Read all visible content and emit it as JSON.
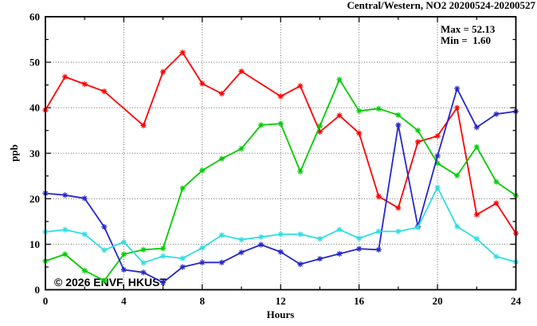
{
  "chart_data": {
    "type": "line",
    "title": "Central/Western, NO2 20200524-20200527",
    "annotations": {
      "max_label": "Max = 52.13",
      "min_label": "Min =  1.60"
    },
    "xlabel": "Hours",
    "ylabel": "ppb",
    "xlim": [
      0,
      24
    ],
    "ylim": [
      0,
      60
    ],
    "x_ticks": [
      0,
      4,
      8,
      12,
      16,
      20,
      24
    ],
    "y_ticks": [
      0,
      10,
      20,
      30,
      40,
      50,
      60
    ],
    "x_minor_step": 2,
    "y_minor_step": 5,
    "grid": true,
    "legend": "none",
    "x": [
      0,
      1,
      2,
      3,
      4,
      5,
      6,
      7,
      8,
      9,
      10,
      11,
      12,
      13,
      14,
      15,
      16,
      17,
      18,
      19,
      20,
      21,
      22,
      23,
      24
    ],
    "series": [
      {
        "name": "series-red",
        "color": "#ff0000",
        "values": [
          39.5,
          46.8,
          45.2,
          43.6,
          null,
          36.1,
          47.9,
          52.13,
          45.3,
          43.1,
          48.0,
          null,
          42.5,
          44.8,
          34.7,
          38.3,
          34.4,
          20.5,
          18.0,
          32.5,
          33.8,
          40.0,
          16.5,
          19.0,
          12.4
        ]
      },
      {
        "name": "series-green",
        "color": "#00cc00",
        "values": [
          6.3,
          7.8,
          4.2,
          2.0,
          7.8,
          8.8,
          9.1,
          22.3,
          26.2,
          28.8,
          31.0,
          36.2,
          36.5,
          26.0,
          36.0,
          46.2,
          39.3,
          39.8,
          38.4,
          35.0,
          27.8,
          25.1,
          31.4,
          23.7,
          20.7
        ]
      },
      {
        "name": "series-blue",
        "color": "#2626cc",
        "values": [
          21.2,
          20.8,
          20.1,
          13.8,
          4.4,
          3.8,
          1.6,
          5.0,
          6.0,
          6.0,
          8.2,
          9.9,
          8.3,
          5.6,
          6.8,
          7.9,
          9.0,
          8.8,
          36.2,
          13.9,
          29.4,
          44.2,
          35.7,
          38.6,
          39.2
        ]
      },
      {
        "name": "series-cyan",
        "color": "#30dde0",
        "values": [
          12.7,
          13.2,
          12.2,
          8.7,
          10.5,
          5.9,
          7.4,
          6.9,
          9.2,
          12.0,
          11.0,
          11.6,
          12.2,
          12.2,
          11.2,
          13.2,
          11.3,
          12.8,
          12.8,
          13.7,
          22.5,
          13.9,
          11.2,
          7.3,
          6.1
        ]
      }
    ]
  },
  "watermark": {
    "text": "© 2026 ENVF, HKUST",
    "color": "#d4d4d4"
  },
  "style_colors": {
    "axis": "#000000",
    "grid": "#666666",
    "background": "#ffffff"
  }
}
